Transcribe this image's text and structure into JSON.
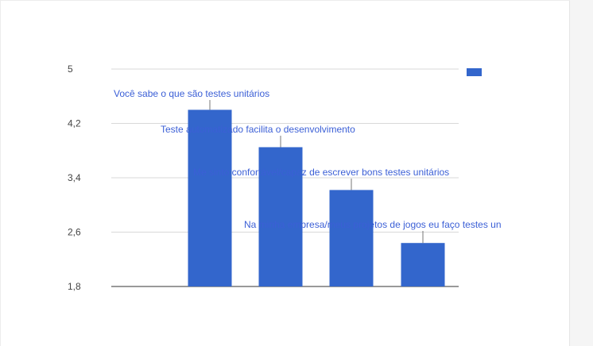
{
  "chart_data": {
    "type": "bar",
    "categories": [
      "Você sabe o que são testes unitários",
      "Teste automatizado facilita o desenvolvimento",
      "Me sinto confortável/capaz de escrever bons testes unitários",
      "Na minha empresa/meus projetos de jogos eu faço testes un"
    ],
    "values": [
      4.4,
      3.85,
      3.22,
      2.44
    ],
    "ylim": [
      1.8,
      5
    ],
    "yticks": [
      1.8,
      2.6,
      3.4,
      4.2,
      5
    ],
    "ytick_labels": [
      "1,8",
      "2,6",
      "3,4",
      "4,2",
      "5"
    ],
    "grid": true,
    "legend": "top-right",
    "legend_label": "",
    "bar_color": "#3366cc",
    "label_color": "#3b5fd6"
  }
}
